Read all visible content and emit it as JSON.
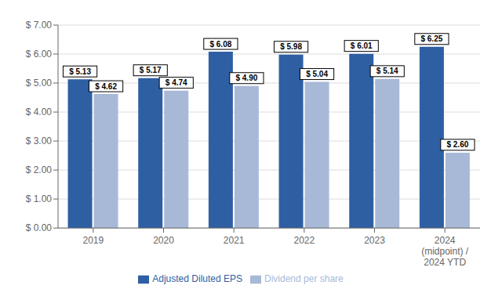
{
  "chart_data": {
    "type": "bar",
    "categories": [
      "2019",
      "2020",
      "2021",
      "2022",
      "2023",
      "2024\n(midpoint) /\n2024 YTD"
    ],
    "series": [
      {
        "name": "Adjusted Diluted EPS",
        "color": "#2E5FA3",
        "values": [
          5.13,
          5.17,
          6.08,
          5.98,
          6.01,
          6.25
        ],
        "value_labels": [
          "$ 5.13",
          "$ 5.17",
          "$ 6.08",
          "$ 5.98",
          "$ 6.01",
          "$ 6.25"
        ]
      },
      {
        "name": "Dividend per share",
        "color": "#A8B9D8",
        "values": [
          4.62,
          4.74,
          4.9,
          5.04,
          5.14,
          2.6
        ],
        "value_labels": [
          "$ 4.62",
          "$ 4.74",
          "$ 4.90",
          "$ 5.04",
          "$ 5.14",
          "$ 2.60"
        ]
      }
    ],
    "ylim": [
      0,
      7.0
    ],
    "yticks": [
      {
        "value": 0.0,
        "label": "$ 0.00"
      },
      {
        "value": 1.0,
        "label": "$ 1.00"
      },
      {
        "value": 2.0,
        "label": "$ 2.00"
      },
      {
        "value": 3.0,
        "label": "$ 3.00"
      },
      {
        "value": 4.0,
        "label": "$ 4.00"
      },
      {
        "value": 5.0,
        "label": "$ 5.00"
      },
      {
        "value": 6.0,
        "label": "$ 6.00"
      },
      {
        "value": 7.0,
        "label": "$ 7.00"
      }
    ],
    "grid": true,
    "data_labels": true,
    "legend": "bottom"
  }
}
